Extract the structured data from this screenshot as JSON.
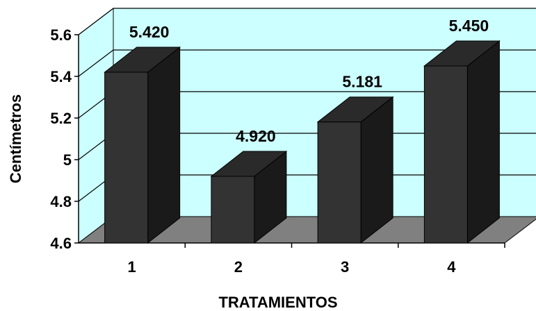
{
  "chart_data": {
    "type": "bar",
    "title": "",
    "xlabel": "TRATAMIENTOS",
    "ylabel": "Centímetros",
    "categories": [
      "1",
      "2",
      "3",
      "4"
    ],
    "values": [
      5.42,
      4.92,
      5.181,
      5.45
    ],
    "data_labels": [
      "5.420",
      "4.920",
      "5.181",
      "5.450"
    ],
    "y_ticks": [
      4.6,
      4.8,
      5,
      5.2,
      5.4,
      5.6
    ],
    "y_tick_labels": [
      "4.6",
      "4.8",
      "5",
      "5.2",
      "5.4",
      "5.6"
    ],
    "ylim": [
      4.6,
      5.6
    ],
    "grid": true,
    "legend": "none",
    "style": "3d",
    "colors": {
      "wall": "#ccffff",
      "floor": "#808080",
      "bar_front": "#333333",
      "bar_side": "#1a1a1a",
      "bar_top": "#2a2a2a",
      "grid": "#000000"
    }
  }
}
